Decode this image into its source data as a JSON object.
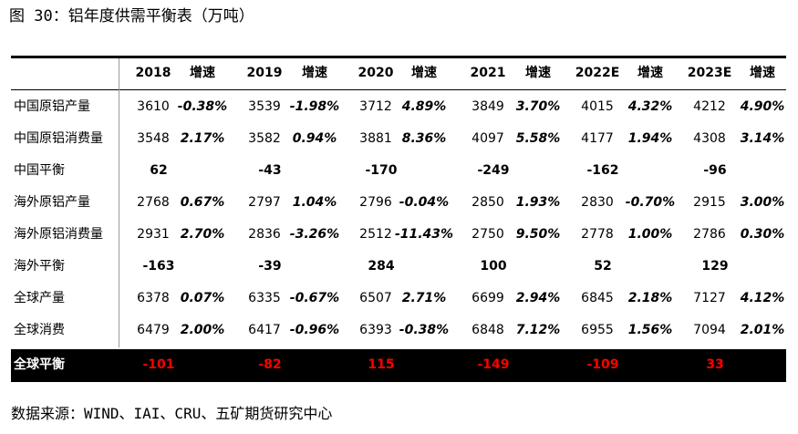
{
  "title": "图 30：铝年度供需平衡表（万吨）",
  "table": {
    "header": [
      "2018",
      "增速",
      "2019",
      "增速",
      "2020",
      "增速",
      "2021",
      "增速",
      "2022E",
      "增速",
      "2023E",
      "增速"
    ],
    "rows": [
      {
        "label": "中国原铝产量",
        "values": [
          "3610",
          "3539",
          "3712",
          "3849",
          "4015",
          "4212"
        ],
        "growth": [
          "-0.38%",
          "-1.98%",
          "4.89%",
          "3.70%",
          "4.32%",
          "4.90%"
        ]
      },
      {
        "label": "中国原铝消费量",
        "values": [
          "3548",
          "3582",
          "3881",
          "4097",
          "4177",
          "4308"
        ],
        "growth": [
          "2.17%",
          "0.94%",
          "8.36%",
          "5.58%",
          "1.94%",
          "3.14%"
        ]
      },
      {
        "label": "中国平衡",
        "values": [
          "62",
          "-43",
          "-170",
          "-249",
          "-162",
          "-96"
        ]
      },
      {
        "label": "海外原铝产量",
        "values": [
          "2768",
          "2797",
          "2796",
          "2850",
          "2830",
          "2915"
        ],
        "growth": [
          "0.67%",
          "1.04%",
          "-0.04%",
          "1.93%",
          "-0.70%",
          "3.00%"
        ]
      },
      {
        "label": "海外原铝消费量",
        "values": [
          "2931",
          "2836",
          "2512",
          "2750",
          "2778",
          "2786"
        ],
        "growth": [
          "2.70%",
          "-3.26%",
          "-11.43%",
          "9.50%",
          "1.00%",
          "0.30%"
        ]
      },
      {
        "label": "海外平衡",
        "values": [
          "-163",
          "-39",
          "284",
          "100",
          "52",
          "129"
        ]
      },
      {
        "label": "全球产量",
        "values": [
          "6378",
          "6335",
          "6507",
          "6699",
          "6845",
          "7127"
        ],
        "growth": [
          "0.07%",
          "-0.67%",
          "2.71%",
          "2.94%",
          "2.18%",
          "4.12%"
        ]
      },
      {
        "label": "全球消费",
        "values": [
          "6479",
          "6417",
          "6393",
          "6848",
          "6955",
          "7094"
        ],
        "growth": [
          "2.00%",
          "-0.96%",
          "-0.38%",
          "7.12%",
          "1.56%",
          "2.01%"
        ]
      },
      {
        "label": "全球平衡",
        "values": [
          "-101",
          "-82",
          "115",
          "-149",
          "-109",
          "33"
        ]
      }
    ]
  },
  "source": "数据来源：WIND、IAI、CRU、五矿期货研究中心"
}
